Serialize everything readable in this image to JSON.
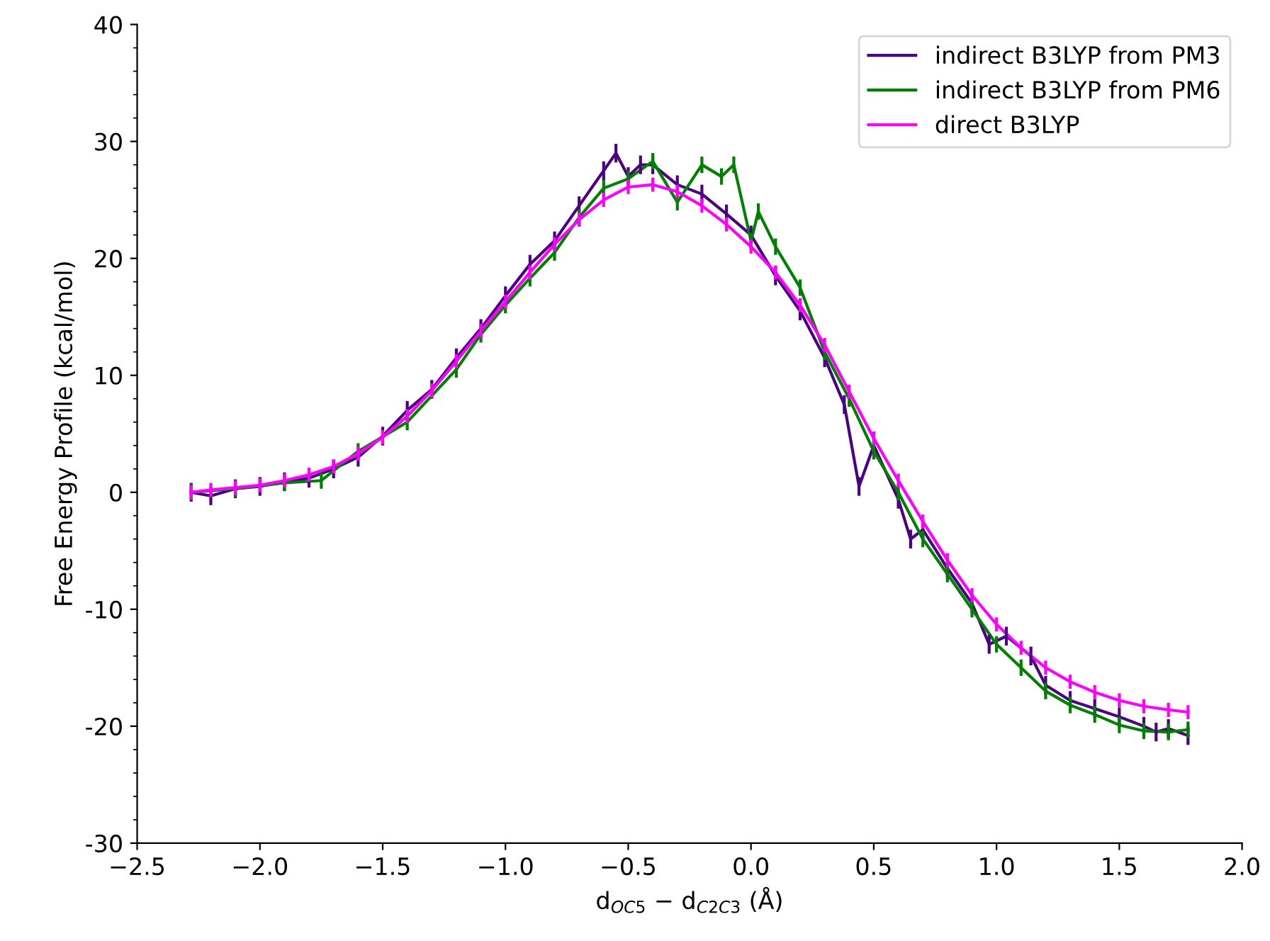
{
  "chart_data": {
    "type": "line",
    "xlabel": "d$_{OC5}$ − d$_{C2C3}$ (Å)",
    "ylabel": "Free Energy Profile (kcal/mol)",
    "xlim": [
      -2.5,
      2.0
    ],
    "xticks": [
      {
        "value": -2.5,
        "label": "−2.5"
      },
      {
        "value": -2.0,
        "label": "−2.0"
      },
      {
        "value": -1.5,
        "label": "−1.5"
      },
      {
        "value": -1.0,
        "label": "−1.0"
      },
      {
        "value": -0.5,
        "label": "−0.5"
      },
      {
        "value": 0.0,
        "label": "0.0"
      },
      {
        "value": 0.5,
        "label": "0.5"
      },
      {
        "value": 1.0,
        "label": "1.0"
      },
      {
        "value": 1.5,
        "label": "1.5"
      },
      {
        "value": 2.0,
        "label": "2.0"
      }
    ],
    "ylim": [
      -30,
      40
    ],
    "yticks": [
      -30,
      -20,
      -10,
      0,
      10,
      20,
      30,
      40
    ],
    "legend": "top right",
    "grid": false,
    "marker": "none",
    "line_style": "solid",
    "series": [
      {
        "name": "indirect B3LYP from PM3",
        "color": "#4b0082",
        "x": [
          -2.28,
          -2.2,
          -2.1,
          -2.0,
          -1.9,
          -1.8,
          -1.7,
          -1.6,
          -1.5,
          -1.4,
          -1.3,
          -1.2,
          -1.1,
          -1.0,
          -0.9,
          -0.8,
          -0.7,
          -0.6,
          -0.55,
          -0.5,
          -0.45,
          -0.4,
          -0.3,
          -0.2,
          -0.1,
          0.0,
          0.1,
          0.2,
          0.3,
          0.38,
          0.44,
          0.5,
          0.6,
          0.65,
          0.7,
          0.8,
          0.9,
          0.97,
          1.04,
          1.14,
          1.2,
          1.3,
          1.4,
          1.5,
          1.6,
          1.65,
          1.7,
          1.78
        ],
        "values": [
          0,
          -0.3,
          0.3,
          0.5,
          0.9,
          1.2,
          2.0,
          3.0,
          4.8,
          7.0,
          8.8,
          11.5,
          14.0,
          16.8,
          19.5,
          21.5,
          24.5,
          27.5,
          29.0,
          27.0,
          28.0,
          28.0,
          26.3,
          25.5,
          23.8,
          22.0,
          18.5,
          15.5,
          11.5,
          7.5,
          0.5,
          4.0,
          -0.6,
          -4.0,
          -3.2,
          -6.5,
          -9.5,
          -13.0,
          -12.3,
          -14.0,
          -16.5,
          -17.8,
          -18.5,
          -19.2,
          -20.0,
          -20.5,
          -20.2,
          -20.8
        ],
        "errors": [
          0.8,
          0.8,
          0.8,
          0.8,
          0.8,
          0.8,
          0.8,
          0.8,
          0.8,
          0.8,
          0.8,
          0.8,
          0.8,
          0.8,
          0.8,
          0.8,
          0.8,
          0.8,
          0.8,
          0.8,
          0.8,
          0.8,
          0.8,
          0.8,
          0.8,
          0.8,
          0.8,
          0.8,
          0.8,
          0.8,
          0.8,
          0.8,
          0.8,
          0.8,
          0.8,
          0.8,
          0.8,
          0.8,
          0.8,
          0.8,
          0.8,
          0.8,
          0.8,
          0.8,
          0.8,
          0.8,
          0.8,
          0.8
        ]
      },
      {
        "name": "indirect B3LYP from PM6",
        "color": "#008000",
        "x": [
          -2.28,
          -2.1,
          -1.9,
          -1.75,
          -1.6,
          -1.4,
          -1.2,
          -1.1,
          -1.0,
          -0.9,
          -0.8,
          -0.7,
          -0.6,
          -0.5,
          -0.4,
          -0.3,
          -0.2,
          -0.12,
          -0.07,
          0.0,
          0.03,
          0.1,
          0.2,
          0.3,
          0.4,
          0.5,
          0.6,
          0.7,
          0.8,
          0.9,
          1.0,
          1.1,
          1.2,
          1.3,
          1.4,
          1.5,
          1.6,
          1.7,
          1.78
        ],
        "values": [
          0,
          0.3,
          0.8,
          1.0,
          3.5,
          6.0,
          10.5,
          13.5,
          16.0,
          18.3,
          20.5,
          23.5,
          26.0,
          26.8,
          28.3,
          24.8,
          28.0,
          27.0,
          28.0,
          21.5,
          24.0,
          21.0,
          17.5,
          12.0,
          8.0,
          3.5,
          0.0,
          -4.0,
          -7.0,
          -10.0,
          -13.0,
          -15.0,
          -17.0,
          -18.2,
          -19.0,
          -19.9,
          -20.4,
          -20.5,
          -20.3
        ],
        "errors": [
          0.7,
          0.7,
          0.7,
          0.7,
          0.7,
          0.7,
          0.7,
          0.7,
          0.7,
          0.7,
          0.7,
          0.7,
          0.7,
          0.7,
          0.7,
          0.7,
          0.7,
          0.7,
          0.7,
          0.7,
          0.7,
          0.7,
          0.7,
          0.7,
          0.7,
          0.7,
          0.7,
          0.7,
          0.7,
          0.7,
          0.7,
          0.7,
          0.7,
          0.7,
          0.7,
          0.7,
          0.7,
          0.7,
          0.7
        ]
      },
      {
        "name": "direct B3LYP",
        "color": "#ff00ff",
        "x": [
          -2.28,
          -2.2,
          -2.1,
          -2.0,
          -1.9,
          -1.8,
          -1.7,
          -1.6,
          -1.5,
          -1.4,
          -1.3,
          -1.2,
          -1.1,
          -1.0,
          -0.9,
          -0.8,
          -0.7,
          -0.6,
          -0.5,
          -0.4,
          -0.3,
          -0.2,
          -0.1,
          0.0,
          0.1,
          0.2,
          0.3,
          0.4,
          0.5,
          0.6,
          0.7,
          0.8,
          0.9,
          1.0,
          1.1,
          1.2,
          1.3,
          1.4,
          1.5,
          1.6,
          1.7,
          1.78
        ],
        "values": [
          0,
          0.2,
          0.4,
          0.6,
          1.0,
          1.5,
          2.2,
          3.3,
          4.7,
          6.5,
          8.7,
          11.2,
          13.8,
          16.3,
          18.8,
          21.2,
          23.3,
          25.0,
          26.1,
          26.3,
          25.7,
          24.5,
          22.9,
          21.0,
          18.8,
          16.0,
          12.6,
          8.6,
          4.6,
          1.0,
          -2.5,
          -5.8,
          -8.8,
          -11.3,
          -13.3,
          -15.0,
          -16.2,
          -17.1,
          -17.8,
          -18.3,
          -18.6,
          -18.8
        ],
        "errors": [
          0.6,
          0.6,
          0.6,
          0.6,
          0.6,
          0.6,
          0.6,
          0.6,
          0.6,
          0.6,
          0.6,
          0.6,
          0.6,
          0.6,
          0.6,
          0.6,
          0.6,
          0.6,
          0.6,
          0.6,
          0.6,
          0.6,
          0.6,
          0.6,
          0.6,
          0.6,
          0.6,
          0.6,
          0.6,
          0.6,
          0.6,
          0.6,
          0.6,
          0.6,
          0.6,
          0.6,
          0.6,
          0.6,
          0.6,
          0.6,
          0.6,
          0.6
        ]
      }
    ]
  }
}
